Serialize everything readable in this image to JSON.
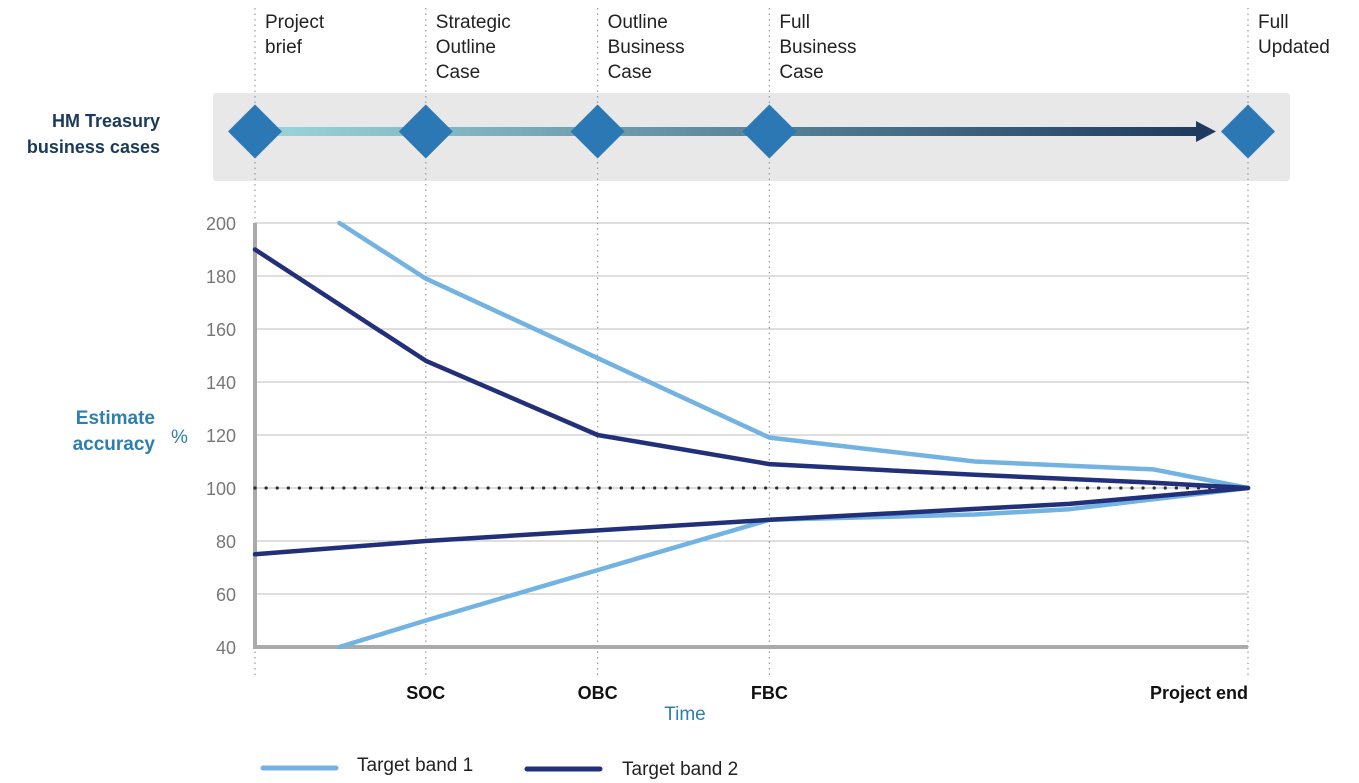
{
  "colors": {
    "band1": "#72b3e2",
    "band2": "#22307a",
    "diamond": "#2b78b5",
    "timeline_start": "#9cd7dc",
    "timeline_end": "#1f3a5e",
    "band_background": "#e8e8e8",
    "accent_text": "#2d7fb0"
  },
  "header": {
    "row_label_line1": "HM Treasury",
    "row_label_line2": "business cases",
    "stages": [
      {
        "lines": [
          "Project",
          "brief"
        ]
      },
      {
        "lines": [
          "Strategic",
          "Outline",
          "Case"
        ]
      },
      {
        "lines": [
          "Outline",
          "Business",
          "Case"
        ]
      },
      {
        "lines": [
          "Full",
          "Business",
          "Case"
        ]
      },
      {
        "lines": [
          "Full",
          "Updated"
        ]
      }
    ]
  },
  "chart_data": {
    "type": "line",
    "ylabel_line1": "Estimate",
    "ylabel_line2": "accuracy",
    "yunit": "%",
    "xlabel": "Time",
    "ylim": [
      40,
      200
    ],
    "yticks": [
      40,
      60,
      80,
      100,
      120,
      140,
      160,
      180,
      200
    ],
    "xlim": [
      0,
      1
    ],
    "x_categories": [
      {
        "label": "SOC",
        "x": 0.172
      },
      {
        "label": "OBC",
        "x": 0.345
      },
      {
        "label": "FBC",
        "x": 0.518
      },
      {
        "label": "Project end",
        "x": 1.0
      }
    ],
    "stage_x": [
      0.0,
      0.172,
      0.345,
      0.518,
      1.0
    ],
    "reference_line": {
      "y": 100,
      "style": "dotted"
    },
    "grid": true,
    "legend": "bottom",
    "series": [
      {
        "name": "Target band 1",
        "color": "#72b3e2",
        "upper": [
          [
            0.085,
            200
          ],
          [
            0.172,
            179
          ],
          [
            0.345,
            149
          ],
          [
            0.518,
            119
          ],
          [
            0.725,
            110
          ],
          [
            0.905,
            107
          ],
          [
            1.0,
            100
          ]
        ],
        "lower": [
          [
            0.085,
            40
          ],
          [
            0.172,
            50
          ],
          [
            0.345,
            69
          ],
          [
            0.518,
            88
          ],
          [
            0.725,
            90
          ],
          [
            0.82,
            92
          ],
          [
            1.0,
            100
          ]
        ]
      },
      {
        "name": "Target band 2",
        "color": "#22307a",
        "upper": [
          [
            0.0,
            190
          ],
          [
            0.172,
            148
          ],
          [
            0.345,
            120
          ],
          [
            0.518,
            109
          ],
          [
            0.725,
            105
          ],
          [
            0.905,
            102
          ],
          [
            1.0,
            100
          ]
        ],
        "lower": [
          [
            0.0,
            75
          ],
          [
            0.172,
            80
          ],
          [
            0.345,
            84
          ],
          [
            0.518,
            88
          ],
          [
            0.82,
            94
          ],
          [
            1.0,
            100
          ]
        ]
      }
    ]
  }
}
